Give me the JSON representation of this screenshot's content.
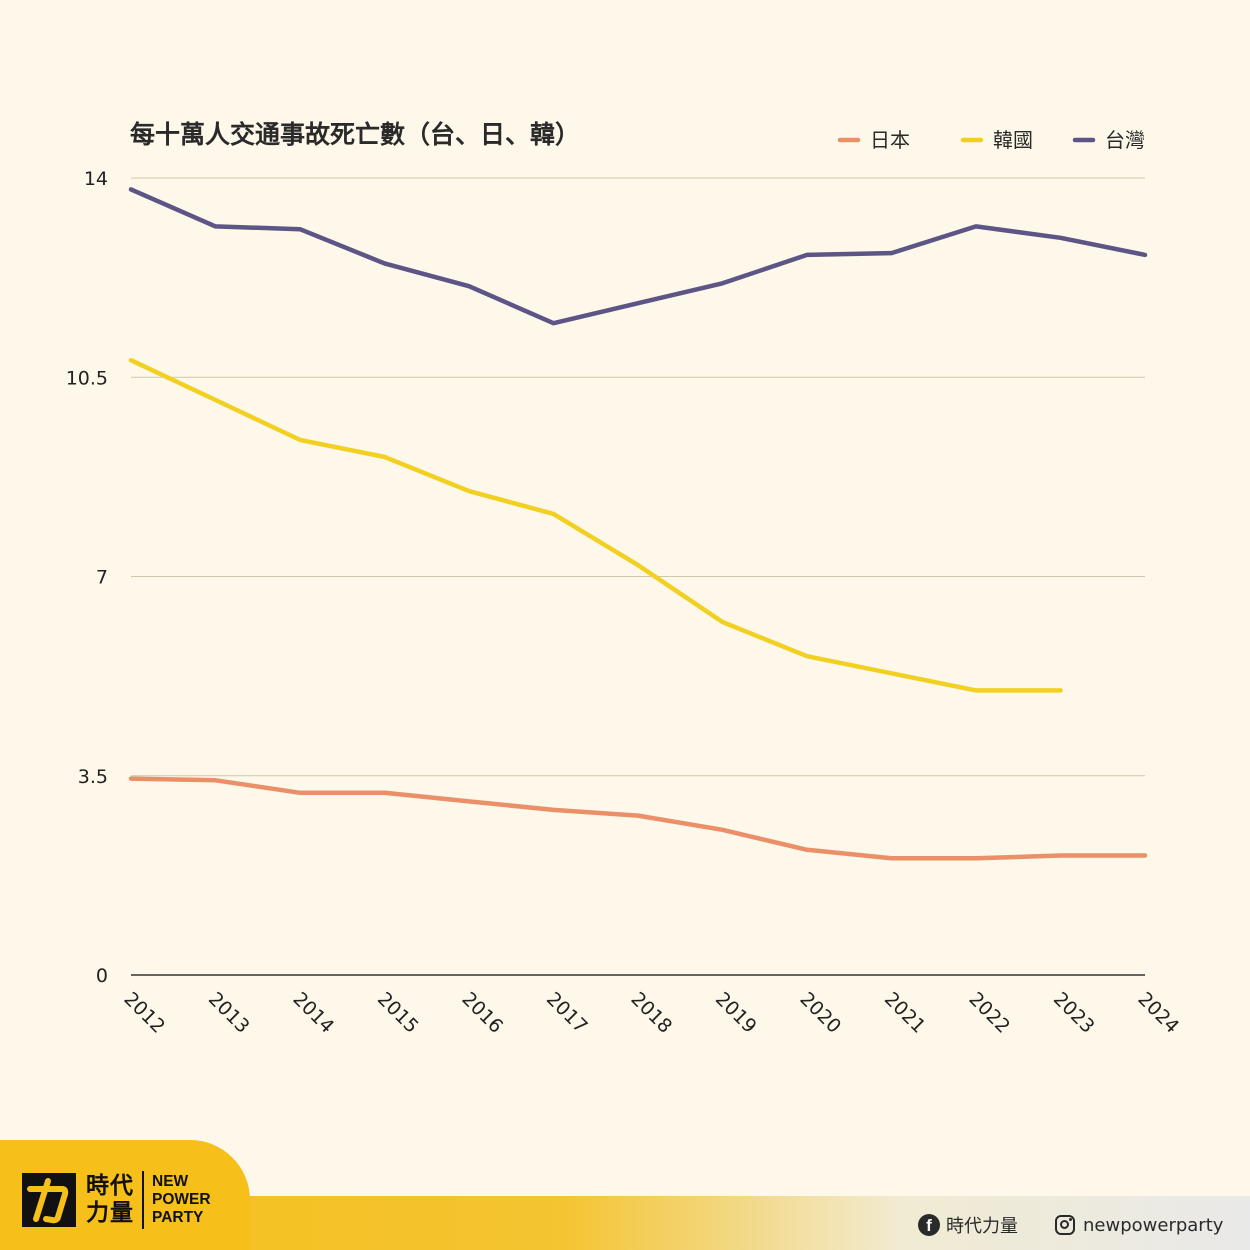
{
  "chart_data": {
    "type": "line",
    "title": "每十萬人交通事故死亡數（台、日、韓）",
    "x": [
      "2012",
      "2013",
      "2014",
      "2015",
      "2016",
      "2017",
      "2018",
      "2019",
      "2020",
      "2021",
      "2022",
      "2023",
      "2024"
    ],
    "y_ticks": [
      "0",
      "3.5",
      "7",
      "10.5",
      "14"
    ],
    "ylim": [
      0,
      14
    ],
    "grid": "horizontal",
    "legend_position": "top-right",
    "series": [
      {
        "name": "日本",
        "color": "#eb8f68",
        "values": [
          3.45,
          3.42,
          3.2,
          3.2,
          3.05,
          2.9,
          2.8,
          2.55,
          2.2,
          2.05,
          2.05,
          2.1,
          2.1
        ]
      },
      {
        "name": "韓國",
        "color": "#f2d022",
        "values": [
          10.8,
          10.1,
          9.4,
          9.1,
          8.5,
          8.1,
          7.2,
          6.2,
          5.6,
          5.3,
          5.0,
          5.0,
          null
        ]
      },
      {
        "name": "台灣",
        "color": "#5c5585",
        "values": [
          13.8,
          13.15,
          13.1,
          12.5,
          12.1,
          11.45,
          11.8,
          12.15,
          12.65,
          12.68,
          13.15,
          12.95,
          12.65
        ]
      }
    ]
  },
  "footer": {
    "logo_zh_line1": "時代",
    "logo_zh_line2": "力量",
    "logo_en_line1": "NEW",
    "logo_en_line2": "POWER",
    "logo_en_line3": "PARTY",
    "facebook_icon": "f",
    "facebook_label": "時代力量",
    "instagram_label": "newpowerparty"
  }
}
